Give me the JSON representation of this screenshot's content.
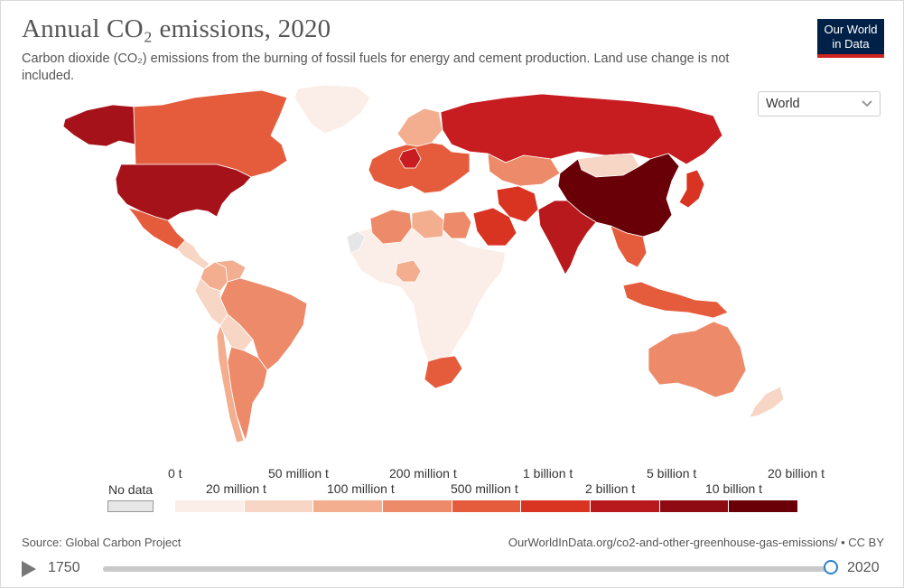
{
  "header": {
    "title": "Annual CO₂ emissions, 2020",
    "subtitle": "Carbon dioxide (CO₂) emissions from the burning of fossil fuels for energy and cement production. Land use change is not included.",
    "logo_line1": "Our World",
    "logo_line2": "in Data"
  },
  "region_select": {
    "value": "World",
    "icon": "chevron-down-icon"
  },
  "legend": {
    "no_data_label": "No data",
    "top_labels": [
      "0 t",
      "50 million t",
      "200 million t",
      "1 billion t",
      "5 billion t",
      "20 billion t"
    ],
    "bottom_labels": [
      "20 million t",
      "100 million t",
      "500 million t",
      "2 billion t",
      "10 billion t"
    ],
    "colors": [
      "#fbeee8",
      "#f8d6c5",
      "#f2ae8f",
      "#ec8a69",
      "#e55c3d",
      "#d93422",
      "#b8191c",
      "#8e0b13",
      "#690008"
    ],
    "no_data_color": "#e6e6e6"
  },
  "map_data": {
    "regions": [
      {
        "name": "Canada",
        "color": "#e55c3d"
      },
      {
        "name": "United States",
        "color": "#a5121a"
      },
      {
        "name": "Alaska",
        "color": "#a5121a"
      },
      {
        "name": "Greenland",
        "color": "#fbeee8"
      },
      {
        "name": "Mexico",
        "color": "#e55c3d"
      },
      {
        "name": "Central America",
        "color": "#f8d6c5"
      },
      {
        "name": "Colombia",
        "color": "#f2ae8f"
      },
      {
        "name": "Venezuela",
        "color": "#f2ae8f"
      },
      {
        "name": "Brazil",
        "color": "#ec8a69"
      },
      {
        "name": "Peru",
        "color": "#f8d6c5"
      },
      {
        "name": "Bolivia",
        "color": "#f8d6c5"
      },
      {
        "name": "Chile",
        "color": "#f2ae8f"
      },
      {
        "name": "Argentina",
        "color": "#ec8a69"
      },
      {
        "name": "Russia",
        "color": "#c81d20"
      },
      {
        "name": "Europe",
        "color": "#e55c3d"
      },
      {
        "name": "Scandinavia",
        "color": "#f2ae8f"
      },
      {
        "name": "Germany",
        "color": "#c81d20"
      },
      {
        "name": "Kazakhstan",
        "color": "#ec8a69"
      },
      {
        "name": "Mongolia",
        "color": "#f8d6c5"
      },
      {
        "name": "China",
        "color": "#690008"
      },
      {
        "name": "India",
        "color": "#b8191c"
      },
      {
        "name": "Iran",
        "color": "#d93422"
      },
      {
        "name": "Saudi Arabia",
        "color": "#d93422"
      },
      {
        "name": "Japan",
        "color": "#d93422"
      },
      {
        "name": "Indonesia",
        "color": "#e55c3d"
      },
      {
        "name": "Australia",
        "color": "#ec8a69"
      },
      {
        "name": "New Zealand",
        "color": "#f8d6c5"
      },
      {
        "name": "South Africa",
        "color": "#e55c3d"
      },
      {
        "name": "Egypt",
        "color": "#ec8a69"
      },
      {
        "name": "Algeria",
        "color": "#ec8a69"
      },
      {
        "name": "Libya",
        "color": "#f2ae8f"
      },
      {
        "name": "Nigeria",
        "color": "#f2ae8f"
      },
      {
        "name": "Africa (other)",
        "color": "#fbeee8"
      },
      {
        "name": "Western Sahara",
        "color": "#e6e6e6"
      }
    ]
  },
  "footer": {
    "source": "Source: Global Carbon Project",
    "url": "OurWorldInData.org/co2-and-other-greenhouse-gas-emissions/ • CC BY"
  },
  "timeline": {
    "start_year": "1750",
    "end_year": "2020",
    "progress": 1.0
  }
}
